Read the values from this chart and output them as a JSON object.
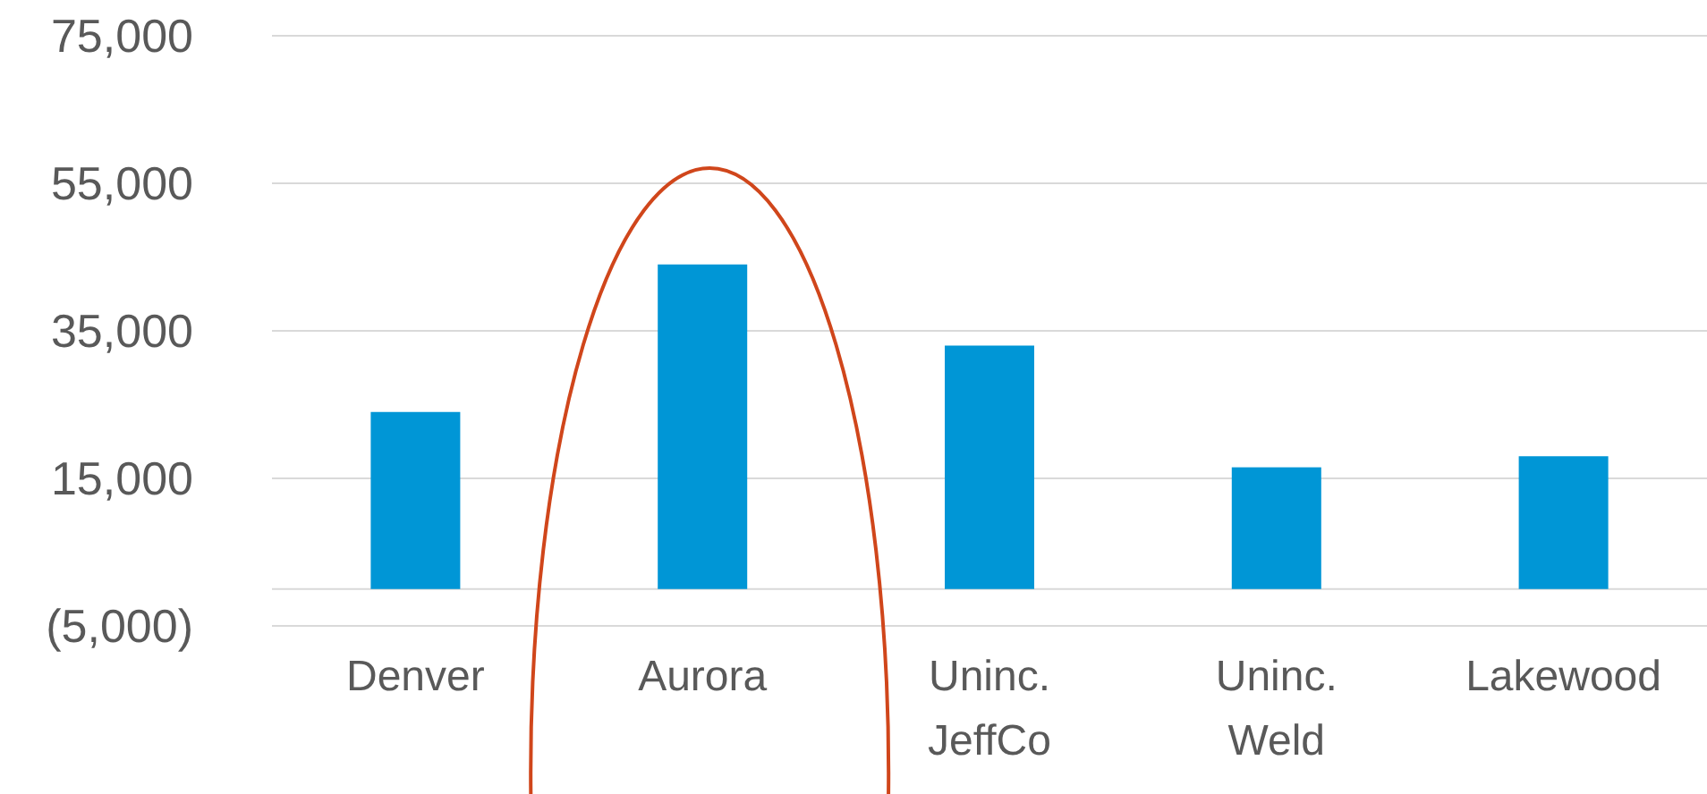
{
  "chart_data": {
    "type": "bar",
    "categories": [
      "Denver",
      "Aurora",
      "Uninc. JeffCo",
      "Uninc. Weld",
      "Lakewood"
    ],
    "values": [
      24000,
      44000,
      33000,
      16500,
      18000
    ],
    "color": "#0096d6",
    "ylim": [
      -5000,
      75000
    ],
    "yticks": [
      {
        "value": -5000,
        "label": "(5,000)"
      },
      {
        "value": 15000,
        "label": "15,000"
      },
      {
        "value": 35000,
        "label": "35,000"
      },
      {
        "value": 55000,
        "label": "55,000"
      },
      {
        "value": 75000,
        "label": "75,000"
      }
    ],
    "grid": "y"
  }
}
